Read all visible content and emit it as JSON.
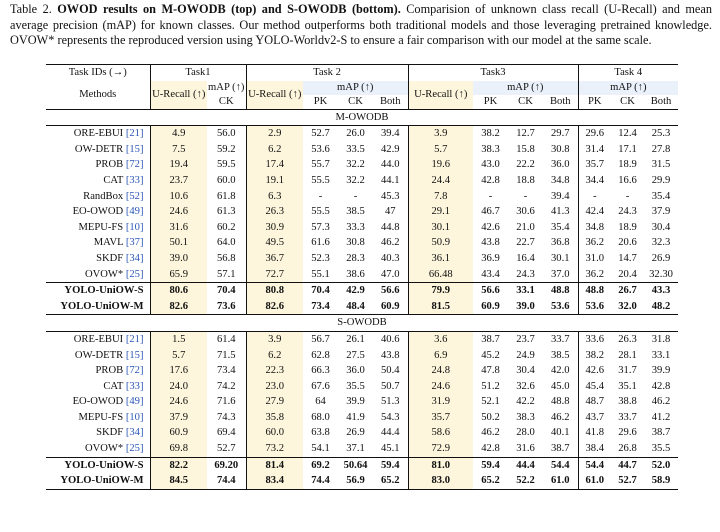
{
  "caption": {
    "label": "Table 2.",
    "bold": "OWOD results on M-OWODB (top) and S-OWODB (bottom).",
    "text": "Comparision of unknown class recall (U-Recall) and mean average precision (mAP) for known classes. Our method outperforms both traditional models and those leveraging pretrained knowledge. OVOW* represents the reproduced version using YOLO-Worldv2-S to ensure a fair comparison with our model at the same scale."
  },
  "header": {
    "task_ids": "Task IDs (→)",
    "methods": "Methods",
    "tasks": [
      "Task1",
      "Task 2",
      "Task3",
      "Task 4"
    ],
    "urecall": "U-Recall (↑)",
    "map": "mAP (↑)",
    "ck": "CK",
    "pk": "PK",
    "both": "Both"
  },
  "sections": [
    {
      "title": "M-OWODB",
      "rows": [
        {
          "name": "ORE-EBUI",
          "ref": "[21]",
          "v": [
            "4.9",
            "56.0",
            "2.9",
            "52.7",
            "26.0",
            "39.4",
            "3.9",
            "38.2",
            "12.7",
            "29.7",
            "29.6",
            "12.4",
            "25.3"
          ]
        },
        {
          "name": "OW-DETR",
          "ref": "[15]",
          "v": [
            "7.5",
            "59.2",
            "6.2",
            "53.6",
            "33.5",
            "42.9",
            "5.7",
            "38.3",
            "15.8",
            "30.8",
            "31.4",
            "17.1",
            "27.8"
          ]
        },
        {
          "name": "PROB",
          "ref": "[72]",
          "v": [
            "19.4",
            "59.5",
            "17.4",
            "55.7",
            "32.2",
            "44.0",
            "19.6",
            "43.0",
            "22.2",
            "36.0",
            "35.7",
            "18.9",
            "31.5"
          ]
        },
        {
          "name": "CAT",
          "ref": "[33]",
          "v": [
            "23.7",
            "60.0",
            "19.1",
            "55.5",
            "32.2",
            "44.1",
            "24.4",
            "42.8",
            "18.8",
            "34.8",
            "34.4",
            "16.6",
            "29.9"
          ]
        },
        {
          "name": "RandBox",
          "ref": "[52]",
          "v": [
            "10.6",
            "61.8",
            "6.3",
            "-",
            "-",
            "45.3",
            "7.8",
            "-",
            "-",
            "39.4",
            "-",
            "-",
            "35.4"
          ]
        },
        {
          "name": "EO-OWOD",
          "ref": "[49]",
          "v": [
            "24.6",
            "61.3",
            "26.3",
            "55.5",
            "38.5",
            "47",
            "29.1",
            "46.7",
            "30.6",
            "41.3",
            "42.4",
            "24.3",
            "37.9"
          ]
        },
        {
          "name": "MEPU-FS",
          "ref": "[10]",
          "v": [
            "31.6",
            "60.2",
            "30.9",
            "57.3",
            "33.3",
            "44.8",
            "30.1",
            "42.6",
            "21.0",
            "35.4",
            "34.8",
            "18.9",
            "30.4"
          ]
        },
        {
          "name": "MAVL",
          "ref": "[37]",
          "v": [
            "50.1",
            "64.0",
            "49.5",
            "61.6",
            "30.8",
            "46.2",
            "50.9",
            "43.8",
            "22.7",
            "36.8",
            "36.2",
            "20.6",
            "32.3"
          ]
        },
        {
          "name": "SKDF",
          "ref": "[34]",
          "v": [
            "39.0",
            "56.8",
            "36.7",
            "52.3",
            "28.3",
            "40.3",
            "36.1",
            "36.9",
            "16.4",
            "30.1",
            "31.0",
            "14.7",
            "26.9"
          ]
        },
        {
          "name": "OVOW*",
          "ref": "[25]",
          "v": [
            "65.9",
            "57.1",
            "72.7",
            "55.1",
            "38.6",
            "47.0",
            "66.48",
            "43.4",
            "24.3",
            "37.0",
            "36.2",
            "20.4",
            "32.30"
          ]
        }
      ],
      "ours": [
        {
          "name": "YOLO-UniOW-S",
          "v": [
            "80.6",
            "70.4",
            "80.8",
            "70.4",
            "42.9",
            "56.6",
            "79.9",
            "56.6",
            "33.1",
            "48.8",
            "48.8",
            "26.7",
            "43.3"
          ]
        },
        {
          "name": "YOLO-UniOW-M",
          "v": [
            "82.6",
            "73.6",
            "82.6",
            "73.4",
            "48.4",
            "60.9",
            "81.5",
            "60.9",
            "39.0",
            "53.6",
            "53.6",
            "32.0",
            "48.2"
          ]
        }
      ]
    },
    {
      "title": "S-OWODB",
      "rows": [
        {
          "name": "ORE-EBUI",
          "ref": "[21]",
          "v": [
            "1.5",
            "61.4",
            "3.9",
            "56.7",
            "26.1",
            "40.6",
            "3.6",
            "38.7",
            "23.7",
            "33.7",
            "33.6",
            "26.3",
            "31.8"
          ]
        },
        {
          "name": "OW-DETR",
          "ref": "[15]",
          "v": [
            "5.7",
            "71.5",
            "6.2",
            "62.8",
            "27.5",
            "43.8",
            "6.9",
            "45.2",
            "24.9",
            "38.5",
            "38.2",
            "28.1",
            "33.1"
          ]
        },
        {
          "name": "PROB",
          "ref": "[72]",
          "v": [
            "17.6",
            "73.4",
            "22.3",
            "66.3",
            "36.0",
            "50.4",
            "24.8",
            "47.8",
            "30.4",
            "42.0",
            "42.6",
            "31.7",
            "39.9"
          ]
        },
        {
          "name": "CAT",
          "ref": "[33]",
          "v": [
            "24.0",
            "74.2",
            "23.0",
            "67.6",
            "35.5",
            "50.7",
            "24.6",
            "51.2",
            "32.6",
            "45.0",
            "45.4",
            "35.1",
            "42.8"
          ]
        },
        {
          "name": "EO-OWOD",
          "ref": "[49]",
          "v": [
            "24.6",
            "71.6",
            "27.9",
            "64",
            "39.9",
            "51.3",
            "31.9",
            "52.1",
            "42.2",
            "48.8",
            "48.7",
            "38.8",
            "46.2"
          ]
        },
        {
          "name": "MEPU-FS",
          "ref": "[10]",
          "v": [
            "37.9",
            "74.3",
            "35.8",
            "68.0",
            "41.9",
            "54.3",
            "35.7",
            "50.2",
            "38.3",
            "46.2",
            "43.7",
            "33.7",
            "41.2"
          ]
        },
        {
          "name": "SKDF",
          "ref": "[34]",
          "v": [
            "60.9",
            "69.4",
            "60.0",
            "63.8",
            "26.9",
            "44.4",
            "58.6",
            "46.2",
            "28.0",
            "40.1",
            "41.8",
            "29.6",
            "38.7"
          ]
        },
        {
          "name": "OVOW*",
          "ref": "[25]",
          "v": [
            "69.8",
            "52.7",
            "73.2",
            "54.1",
            "37.1",
            "45.1",
            "72.9",
            "42.8",
            "31.6",
            "38.7",
            "38.4",
            "26.8",
            "35.5"
          ]
        }
      ],
      "ours": [
        {
          "name": "YOLO-UniOW-S",
          "v": [
            "82.2",
            "69.20",
            "81.4",
            "69.2",
            "50.64",
            "59.4",
            "81.0",
            "59.4",
            "44.4",
            "54.4",
            "54.4",
            "44.7",
            "52.0"
          ]
        },
        {
          "name": "YOLO-UniOW-M",
          "v": [
            "84.5",
            "74.4",
            "83.4",
            "74.4",
            "56.9",
            "65.2",
            "83.0",
            "65.2",
            "52.2",
            "61.0",
            "61.0",
            "52.7",
            "58.9"
          ]
        }
      ]
    }
  ]
}
